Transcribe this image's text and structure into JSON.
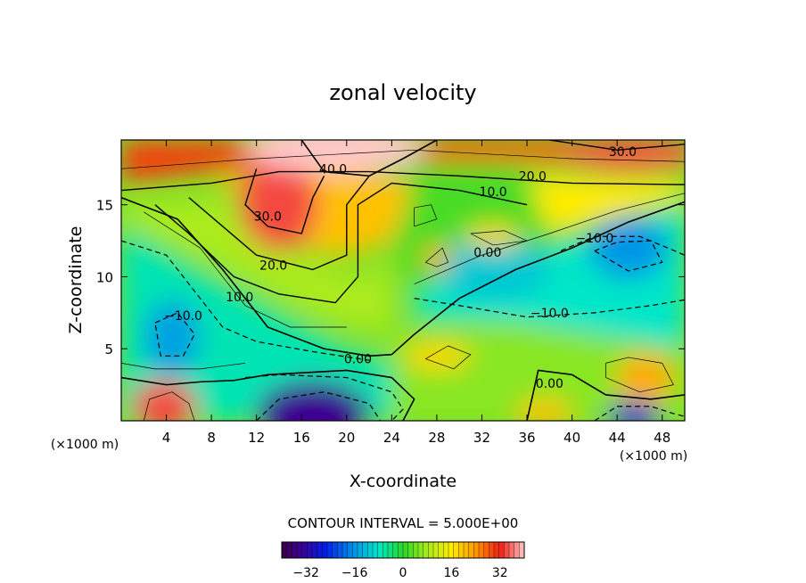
{
  "chart_data": {
    "type": "heatmap",
    "subtype": "filled-contour",
    "title": "zonal velocity",
    "xlabel": "X-coordinate",
    "ylabel": "Z-coordinate",
    "x_unit_left": "(×1000 m)",
    "x_unit_right": "(×1000 m)",
    "xlim": [
      0,
      50
    ],
    "ylim": [
      0,
      19.5
    ],
    "x_ticks": [
      4,
      8,
      12,
      16,
      20,
      24,
      28,
      32,
      36,
      40,
      44,
      48
    ],
    "x_tick_labels": [
      "4",
      "8",
      "12",
      "16",
      "20",
      "24",
      "28",
      "32",
      "36",
      "40",
      "44",
      "48"
    ],
    "y_ticks": [
      5,
      10,
      15
    ],
    "y_tick_labels": [
      "5",
      "10",
      "15"
    ],
    "contour_interval_text": "CONTOUR INTERVAL = 5.000E+00",
    "colorbar": {
      "range": [
        -40,
        40
      ],
      "ticks": [
        -32,
        -16,
        0,
        16,
        32
      ],
      "tick_labels": [
        "−32",
        "−16",
        "0",
        "16",
        "32"
      ]
    },
    "grid": false,
    "contour_labels": [
      {
        "x": 18.8,
        "y": 17.5,
        "text": "40.0"
      },
      {
        "x": 13.0,
        "y": 14.2,
        "text": "30.0"
      },
      {
        "x": 44.5,
        "y": 18.7,
        "text": "30.0"
      },
      {
        "x": 36.5,
        "y": 17.0,
        "text": "20.0"
      },
      {
        "x": 13.5,
        "y": 10.8,
        "text": "20.0"
      },
      {
        "x": 33.0,
        "y": 15.9,
        "text": "10.0"
      },
      {
        "x": 10.5,
        "y": 8.6,
        "text": "10.0"
      },
      {
        "x": 42.0,
        "y": 12.7,
        "text": "−10.0"
      },
      {
        "x": 5.5,
        "y": 7.3,
        "text": "−10.0"
      },
      {
        "x": 38.0,
        "y": 7.5,
        "text": "−10.0"
      },
      {
        "x": 32.5,
        "y": 11.7,
        "text": "0.00"
      },
      {
        "x": 21.0,
        "y": 4.3,
        "text": "0.00"
      },
      {
        "x": 38.0,
        "y": 2.6,
        "text": "0.00"
      }
    ]
  }
}
